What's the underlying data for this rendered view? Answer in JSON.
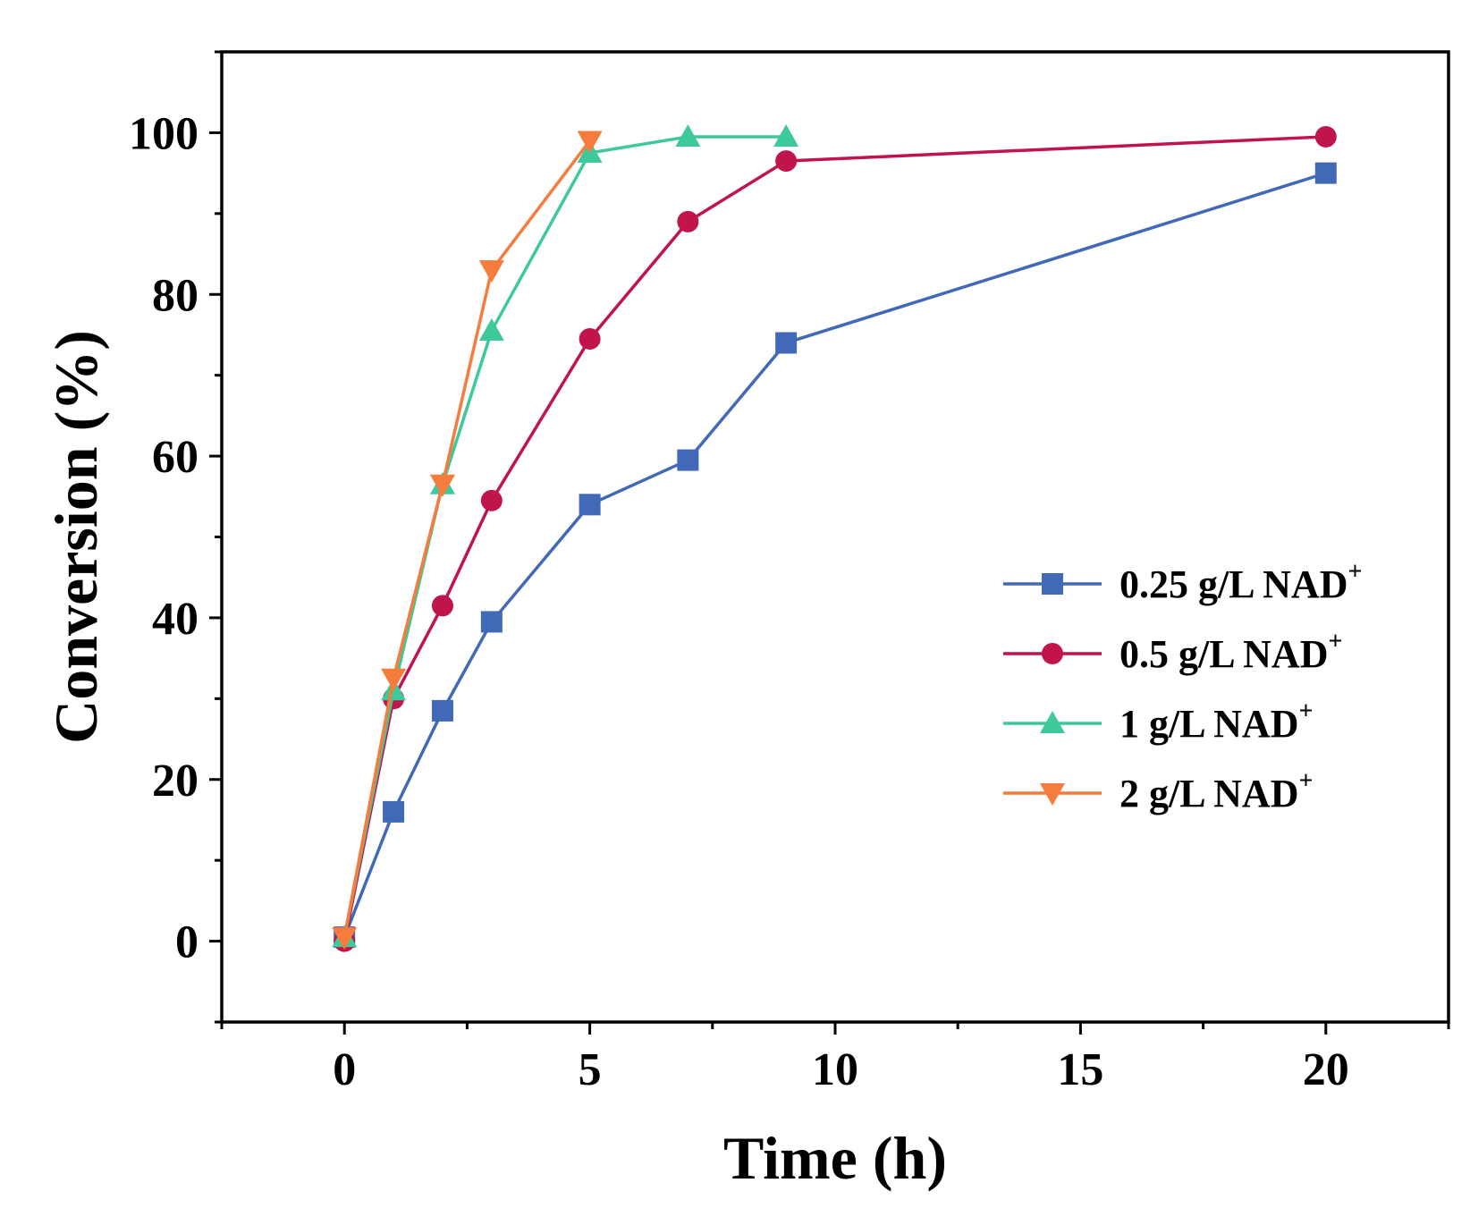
{
  "chart_data": {
    "type": "line",
    "title": "",
    "xlabel": "Time (h)",
    "ylabel": "Conversion (%)",
    "xlim": [
      -2.5,
      22.5
    ],
    "ylim": [
      -10,
      110
    ],
    "x_ticks": [
      0,
      5,
      10,
      15,
      20
    ],
    "y_ticks": [
      0,
      20,
      40,
      60,
      80,
      100
    ],
    "legend_position": "center-right",
    "series": [
      {
        "name": "0.25 g/L NAD",
        "label": "0.25 g/L NAD",
        "sup": "+",
        "color": "#4169b8",
        "marker": "square",
        "x": [
          0,
          1,
          2,
          3,
          5,
          7,
          9,
          20
        ],
        "y": [
          0.5,
          16,
          28.5,
          39.5,
          54,
          59.5,
          74,
          95
        ]
      },
      {
        "name": "0.5 g/L NAD",
        "label": "0.5 g/L NAD",
        "sup": "+",
        "color": "#c0144a",
        "marker": "circle",
        "x": [
          0,
          1,
          2,
          3,
          5,
          7,
          9,
          20
        ],
        "y": [
          0,
          30,
          41.5,
          54.5,
          74.5,
          89,
          96.5,
          99.5
        ]
      },
      {
        "name": "1 g/L NAD",
        "label": "1 g/L NAD",
        "sup": "+",
        "color": "#3dc99a",
        "marker": "triangle-up",
        "x": [
          0,
          1,
          2,
          3,
          5,
          7,
          9
        ],
        "y": [
          0.5,
          31,
          56.5,
          75.5,
          97.5,
          99.5,
          99.5
        ]
      },
      {
        "name": "2 g/L NAD",
        "label": "2 g/L NAD",
        "sup": "+",
        "color": "#f57c3c",
        "marker": "triangle-down",
        "x": [
          0,
          1,
          2,
          3,
          5
        ],
        "y": [
          0.5,
          32.5,
          56.5,
          83,
          99
        ]
      }
    ]
  }
}
